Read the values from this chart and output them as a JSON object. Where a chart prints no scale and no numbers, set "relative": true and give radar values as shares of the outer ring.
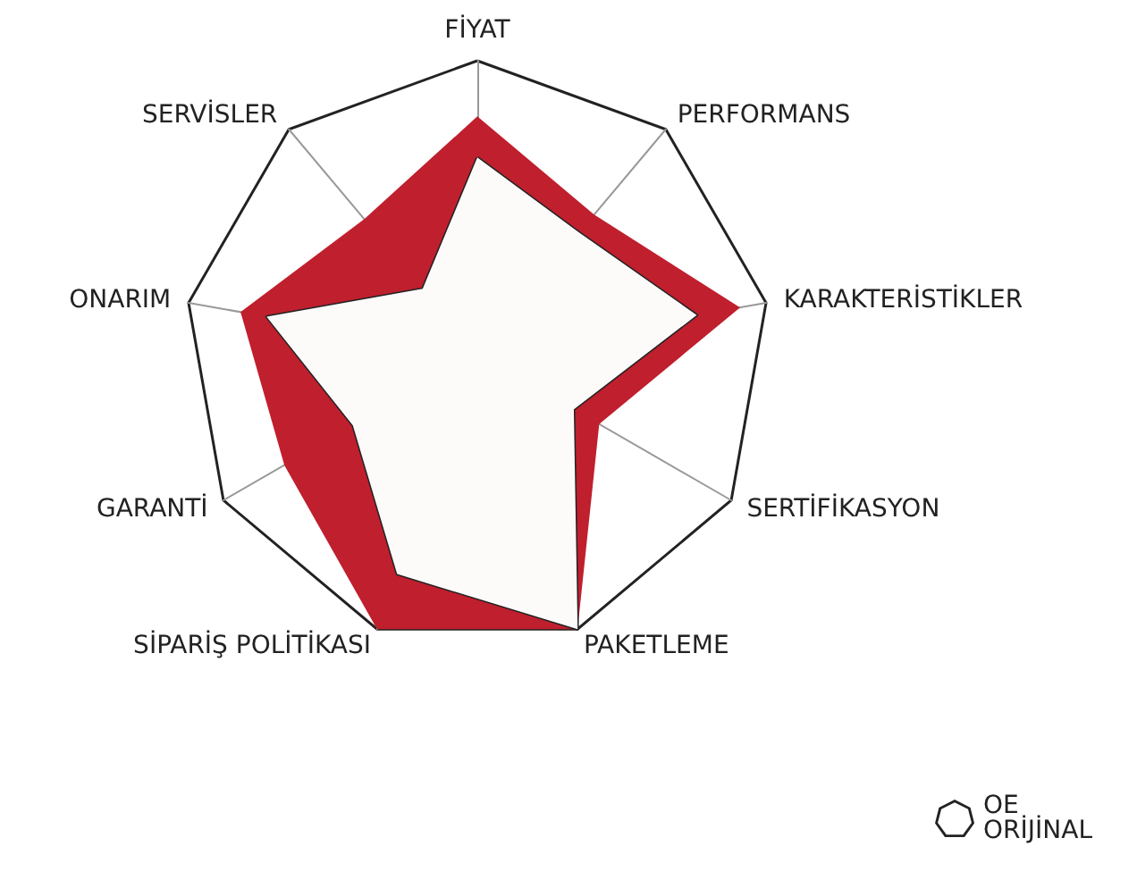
{
  "chart_data": {
    "type": "radar",
    "relative": true,
    "legend": "bottom right",
    "categories": [
      "FİYAT",
      "PERFORMANS",
      "KARAKTERİSTİKLER",
      "SERTİFİKASYON",
      "PAKETLEME",
      "SİPARİŞ POLİTİKASI",
      "GARANTİ",
      "ONARIM",
      "SERVİSLER"
    ],
    "series": [
      {
        "color": "#c01f2e",
        "values": [
          0.81,
          0.62,
          0.91,
          0.48,
          1,
          1,
          0.76,
          0.82,
          0.6
        ]
      },
      {
        "name": "OE ORİJİNAL",
        "color": "#222222",
        "values": [
          0.67,
          0.54,
          0.76,
          0.38,
          1,
          0.8,
          0.49,
          0.73,
          0.29
        ]
      }
    ]
  }
}
